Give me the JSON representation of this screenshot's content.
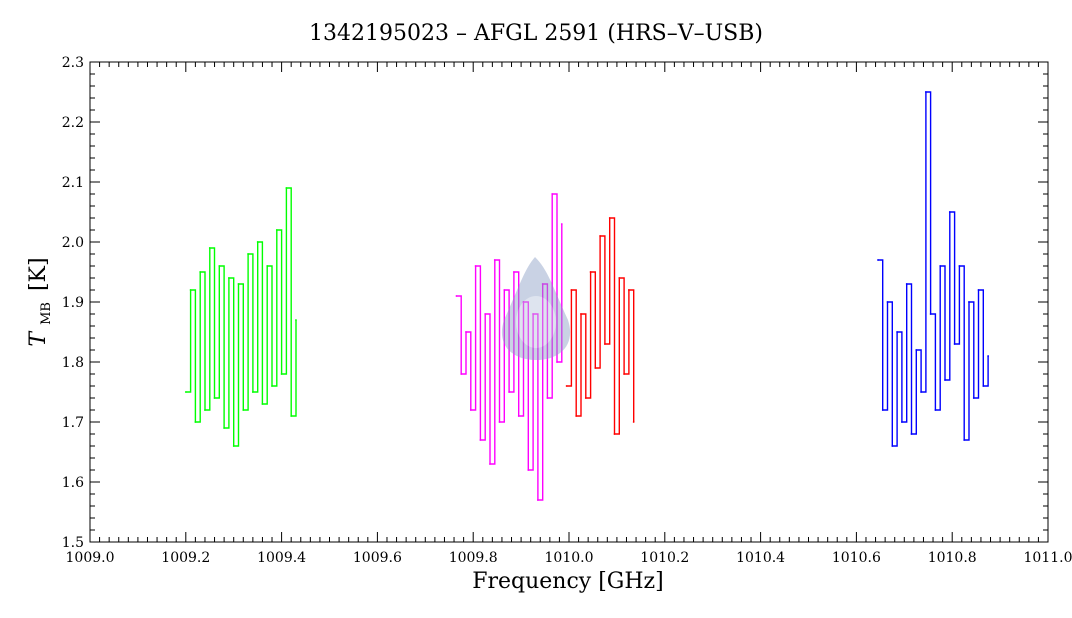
{
  "chart_data": {
    "type": "line",
    "title": "1342195023 – AFGL 2591 (HRS–V–USB)",
    "xlabel": "Frequency [GHz]",
    "ylabel_main": "T",
    "ylabel_sub": "MB",
    "ylabel_unit": "[K]",
    "xlim": [
      1009.0,
      1011.0
    ],
    "ylim": [
      1.5,
      2.3
    ],
    "xticks": [
      1009.0,
      1009.2,
      1009.4,
      1009.6,
      1009.8,
      1010.0,
      1010.2,
      1010.4,
      1010.6,
      1010.8,
      1011.0
    ],
    "xtick_labels": [
      "1009.0",
      "1009.2",
      "1009.4",
      "1009.6",
      "1009.8",
      "1010.0",
      "1010.2",
      "1010.4",
      "1010.6",
      "1010.8",
      "1011.0"
    ],
    "yticks": [
      1.5,
      1.6,
      1.7,
      1.8,
      1.9,
      2.0,
      2.1,
      2.2,
      2.3
    ],
    "ytick_labels": [
      "1.5",
      "1.6",
      "1.7",
      "1.8",
      "1.9",
      "2.0",
      "2.1",
      "2.2",
      "2.3"
    ],
    "grid": false,
    "series": [
      {
        "color": "#00ff00",
        "x": [
          1009.2,
          1009.21,
          1009.22,
          1009.23,
          1009.24,
          1009.25,
          1009.26,
          1009.27,
          1009.28,
          1009.29,
          1009.3,
          1009.31,
          1009.32,
          1009.33,
          1009.34,
          1009.35,
          1009.36,
          1009.37,
          1009.38,
          1009.39,
          1009.4,
          1009.41,
          1009.42,
          1009.43
        ],
        "y": [
          1.75,
          1.92,
          1.7,
          1.95,
          1.72,
          1.99,
          1.74,
          1.96,
          1.69,
          1.94,
          1.66,
          1.93,
          1.72,
          1.98,
          1.75,
          2.0,
          1.73,
          1.96,
          1.76,
          2.02,
          1.78,
          2.09,
          1.71,
          1.87
        ]
      },
      {
        "color": "#ff00ff",
        "x": [
          1009.765,
          1009.775,
          1009.785,
          1009.795,
          1009.805,
          1009.815,
          1009.825,
          1009.835,
          1009.845,
          1009.855,
          1009.865,
          1009.875,
          1009.885,
          1009.895,
          1009.905,
          1009.915,
          1009.925,
          1009.935,
          1009.945,
          1009.955,
          1009.965,
          1009.975,
          1009.985
        ],
        "y": [
          1.91,
          1.78,
          1.85,
          1.72,
          1.96,
          1.67,
          1.88,
          1.63,
          1.97,
          1.7,
          1.92,
          1.75,
          1.95,
          1.71,
          1.9,
          1.62,
          1.88,
          1.57,
          1.93,
          1.74,
          2.08,
          1.8,
          2.03
        ]
      },
      {
        "color": "#ff0000",
        "x": [
          1009.995,
          1010.005,
          1010.015,
          1010.025,
          1010.035,
          1010.045,
          1010.055,
          1010.065,
          1010.075,
          1010.085,
          1010.095,
          1010.105,
          1010.115,
          1010.125,
          1010.135
        ],
        "y": [
          1.76,
          1.92,
          1.71,
          1.88,
          1.74,
          1.95,
          1.79,
          2.01,
          1.83,
          2.04,
          1.68,
          1.94,
          1.78,
          1.92,
          1.7
        ]
      },
      {
        "color": "#0000ff",
        "x": [
          1010.645,
          1010.655,
          1010.665,
          1010.675,
          1010.685,
          1010.695,
          1010.705,
          1010.715,
          1010.725,
          1010.735,
          1010.745,
          1010.755,
          1010.765,
          1010.775,
          1010.785,
          1010.795,
          1010.805,
          1010.815,
          1010.825,
          1010.835,
          1010.845,
          1010.855,
          1010.865,
          1010.875
        ],
        "y": [
          1.97,
          1.72,
          1.9,
          1.66,
          1.85,
          1.7,
          1.93,
          1.68,
          1.82,
          1.75,
          2.25,
          1.88,
          1.72,
          1.96,
          1.77,
          2.05,
          1.83,
          1.96,
          1.67,
          1.9,
          1.74,
          1.92,
          1.76,
          1.81
        ]
      }
    ]
  }
}
